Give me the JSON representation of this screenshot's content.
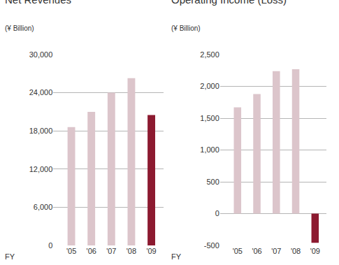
{
  "chart_data": [
    {
      "type": "bar",
      "title": "Net Revenues",
      "subtitle": "(¥ Billion)",
      "x_label": "FY",
      "categories": [
        "'05",
        "'06",
        "'07",
        "'08",
        "'09"
      ],
      "values": [
        18600,
        21000,
        24000,
        26300,
        20500
      ],
      "colors": [
        "#dcc5cb",
        "#dcc5cb",
        "#dcc5cb",
        "#dcc5cb",
        "#8c1a30"
      ],
      "ylim": [
        0,
        30000
      ],
      "yticks": [
        0,
        {
          "value": 6000,
          "label": "6,000"
        },
        {
          "value": 12000,
          "label": "12,000"
        },
        {
          "value": 18000,
          "label": "18,000"
        },
        {
          "value": 24000,
          "label": "24,000"
        },
        {
          "value": 30000,
          "label": "30,000"
        }
      ],
      "grid": true
    },
    {
      "type": "bar",
      "title": "Operating Income (Loss)",
      "subtitle": "(¥ Billion)",
      "x_label": "FY",
      "categories": [
        "'05",
        "'06",
        "'07",
        "'08",
        "'09"
      ],
      "values": [
        1670,
        1880,
        2240,
        2270,
        -460
      ],
      "colors": [
        "#dcc5cb",
        "#dcc5cb",
        "#dcc5cb",
        "#dcc5cb",
        "#8c1a30"
      ],
      "ylim": [
        -500,
        2500
      ],
      "yticks": [
        -500,
        0,
        500,
        {
          "value": 1000,
          "label": "1,000"
        },
        {
          "value": 1500,
          "label": "1,500"
        },
        {
          "value": 2000,
          "label": "2,000"
        },
        {
          "value": 2500,
          "label": "2,500"
        }
      ],
      "grid": true
    }
  ]
}
